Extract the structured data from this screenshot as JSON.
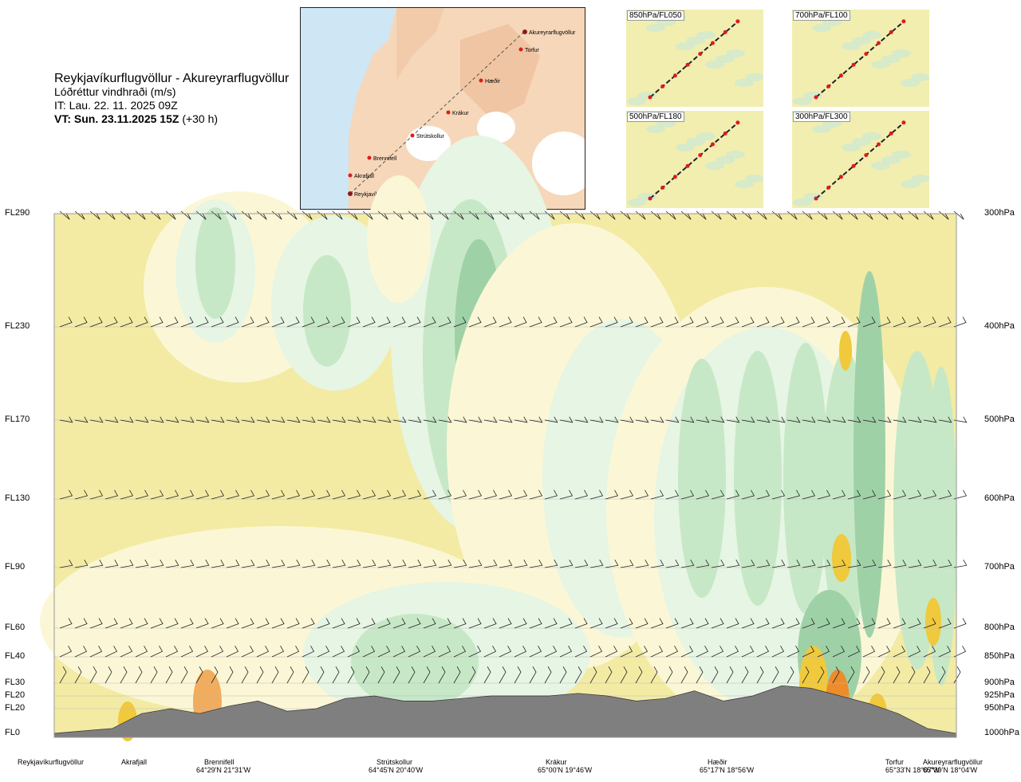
{
  "header": {
    "route": "Reykjavíkurflugvöllur - Akureyrarflugvöllur",
    "subtitle": "Lóðréttur vindhraði (m/s)",
    "issue_time": "IT: Lau. 22. 11. 2025 09Z",
    "valid_prefix": "VT: Sun. 23.11.2025 15Z",
    "valid_suffix": "(+30 h)"
  },
  "map": {
    "places": [
      {
        "name": "Akureyrarflugvöllur"
      },
      {
        "name": "Torfur"
      },
      {
        "name": "Hæðir"
      },
      {
        "name": "Krákur"
      },
      {
        "name": "Strútskollur"
      },
      {
        "name": "Brennifell"
      },
      {
        "name": "Akrafjall"
      },
      {
        "name": "Reykjavíkurflugvöllur"
      }
    ]
  },
  "mini_maps": [
    {
      "label": "850hPa/FL050"
    },
    {
      "label": "700hPa/FL100"
    },
    {
      "label": "500hPa/FL180"
    },
    {
      "label": "300hPa/FL300"
    }
  ],
  "colors": {
    "sink": "#f3eba4",
    "weak_sink": "#fbf7d6",
    "neutral": "#ffffff",
    "weak_rise": "#e6f5e4",
    "rise": "#c7e8c6",
    "strong_rise": "#9fd1a7",
    "hot": "#f0c93c",
    "hotter": "#ec8c2a",
    "terrain": "#7f7f7f"
  },
  "chart_data": {
    "type": "heatmap",
    "title": "Lóðréttur vindhraði (m/s)",
    "levels": [
      {
        "fl": "FL290",
        "hpa": "300hPa"
      },
      {
        "fl": "FL230",
        "hpa": "400hPa"
      },
      {
        "fl": "FL170",
        "hpa": "500hPa"
      },
      {
        "fl": "FL130",
        "hpa": "600hPa"
      },
      {
        "fl": "FL90",
        "hpa": "700hPa"
      },
      {
        "fl": "FL60",
        "hpa": "800hPa"
      },
      {
        "fl": "FL40",
        "hpa": "850hPa"
      },
      {
        "fl": "FL30",
        "hpa": "900hPa"
      },
      {
        "fl": "FL20",
        "hpa": "925hPa"
      },
      {
        "fl": "FL20",
        "hpa": "950hPa"
      },
      {
        "fl": "FL0",
        "hpa": "1000hPa"
      }
    ],
    "locations": [
      {
        "name": "Reykjavíkurflugvöllur",
        "coord": ""
      },
      {
        "name": "Akrafjall",
        "coord": ""
      },
      {
        "name": "Brennifell",
        "coord": "64°29'N 21°31'W"
      },
      {
        "name": "Strútskollur",
        "coord": "64°45'N 20°40'W"
      },
      {
        "name": "Krákur",
        "coord": "65°00'N 19°46'W"
      },
      {
        "name": "Hæðir",
        "coord": "65°17'N 18°56'W"
      },
      {
        "name": "Torfur",
        "coord": "65°33'N 18°07'W"
      },
      {
        "name": "Akureyrarflugvöllur",
        "coord": "65°39'N 18°04'W"
      }
    ],
    "terrain_profile_hpa": [
      1000,
      995,
      990,
      960,
      950,
      960,
      945,
      935,
      955,
      950,
      930,
      925,
      935,
      935,
      930,
      925,
      925,
      925,
      920,
      925,
      935,
      930,
      915,
      935,
      925,
      905,
      910,
      925,
      940,
      960,
      990,
      1000
    ]
  }
}
